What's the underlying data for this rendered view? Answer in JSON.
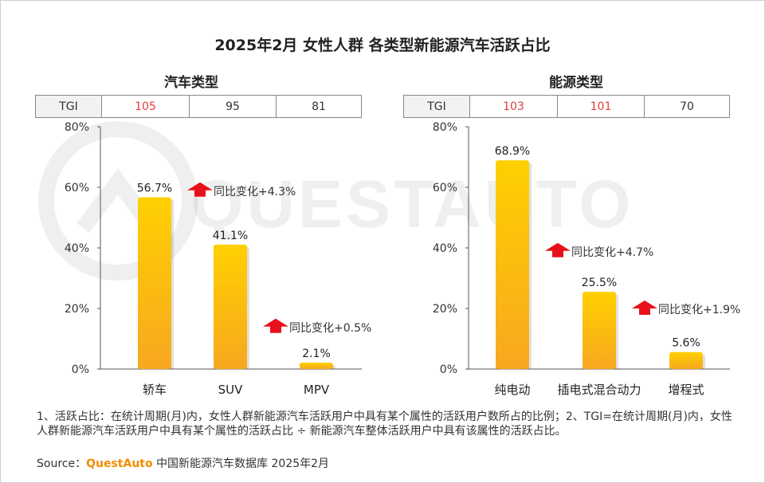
{
  "title": "2025年2月 女性人群 各类型新能源汽车活跃占比",
  "watermark": "QUESTAUTO",
  "tgi_header": "TGI",
  "colors": {
    "bar_top": "#ffd000",
    "bar_bottom": "#f7a820",
    "arrow": "#e8101a",
    "tgi_highlight": "#e03c3c",
    "brand": "#f28c00"
  },
  "chart_data": [
    {
      "type": "bar",
      "title": "汽车类型",
      "categories": [
        "轿车",
        "SUV",
        "MPV"
      ],
      "values": [
        56.7,
        41.1,
        2.1
      ],
      "value_labels": [
        "56.7%",
        "41.1%",
        "2.1%"
      ],
      "tgi": [
        "105",
        "95",
        "81"
      ],
      "tgi_highlight": [
        true,
        false,
        false
      ],
      "yoy_annotations": [
        {
          "after_category": 0,
          "text": "同比变化+4.3%",
          "level": 59
        },
        {
          "after_category": 1,
          "text": "同比变化+0.5%",
          "level": 14
        }
      ],
      "ylim": [
        0,
        80
      ],
      "yticks": [
        0,
        20,
        40,
        60,
        80
      ],
      "ytick_labels": [
        "0%",
        "20%",
        "40%",
        "60%",
        "80%"
      ]
    },
    {
      "type": "bar",
      "title": "能源类型",
      "categories": [
        "纯电动",
        "插电式混合动力",
        "增程式"
      ],
      "values": [
        68.9,
        25.5,
        5.6
      ],
      "value_labels": [
        "68.9%",
        "25.5%",
        "5.6%"
      ],
      "tgi": [
        "103",
        "101",
        "70"
      ],
      "tgi_highlight": [
        true,
        true,
        false
      ],
      "yoy_annotations": [
        {
          "after_category": 0,
          "text": "同比变化+4.7%",
          "level": 39
        },
        {
          "after_category": 1,
          "text": "同比变化+1.9%",
          "level": 20
        }
      ],
      "ylim": [
        0,
        80
      ],
      "yticks": [
        0,
        20,
        40,
        60,
        80
      ],
      "ytick_labels": [
        "0%",
        "20%",
        "40%",
        "60%",
        "80%"
      ]
    }
  ],
  "notes": "1、活跃占比：在统计周期(月)内，女性人群新能源汽车活跃用户中具有某个属性的活跃用户数所占的比例；2、TGI=在统计周期(月)内，女性人群新能源汽车活跃用户中具有某个属性的活跃占比 ÷ 新能源汽车整体活跃用户中具有该属性的活跃占比。",
  "source": {
    "label": "Source：",
    "brand": "QuestAuto",
    "text": "中国新能源汽车数据库 2025年2月"
  }
}
